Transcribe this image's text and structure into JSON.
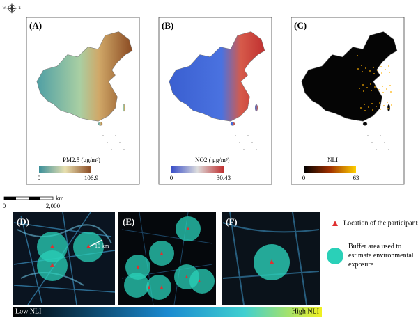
{
  "compass": [
    "W",
    "E"
  ],
  "panels": [
    {
      "label": "(A)",
      "colorbar_title": "PM2.5 (μg/m³)",
      "min": 0,
      "max": 106.9
    },
    {
      "label": "(B)",
      "colorbar_title": "NO2 ( μg/m³)",
      "min": 0,
      "max": 30.43
    },
    {
      "label": "(C)",
      "colorbar_title": "NLI",
      "min": 0,
      "max": 63
    }
  ],
  "scale_bar": {
    "unit": "km",
    "ticks": [
      0,
      {
        "value": 2000,
        "label": "2,000"
      }
    ]
  },
  "insets": [
    {
      "label": "(D)",
      "buffer_label": "10 km"
    },
    {
      "label": "(E)"
    },
    {
      "label": "(F)"
    }
  ],
  "legend": {
    "location": "Location of the participants' address",
    "buffer": "Buffer area used to estimate environmental exposure"
  },
  "nli_bar": {
    "low": "Low NLI",
    "high": "High NLI"
  }
}
